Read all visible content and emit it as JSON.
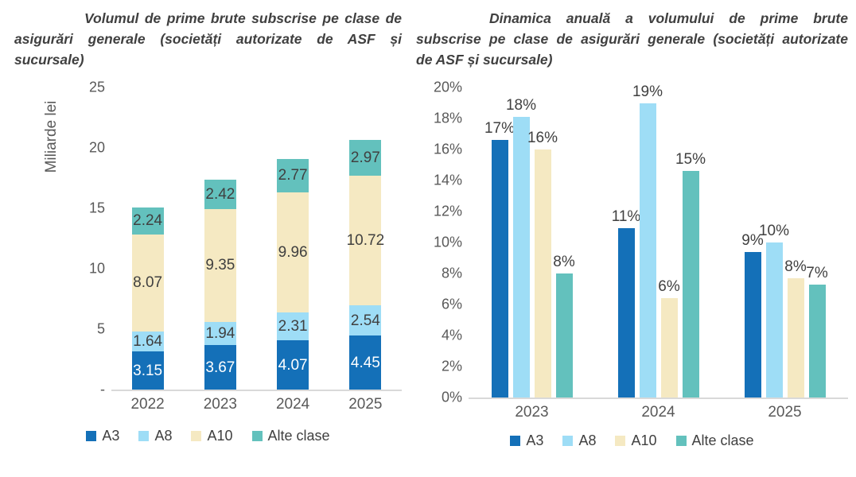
{
  "colors": {
    "axis_line": "#d9d9d9",
    "tick_text": "#595959",
    "label_text": "#404040",
    "series_a3": "#1470b8",
    "series_a8": "#9eddf6",
    "series_a10": "#f5e9c2",
    "series_alte_clase": "#63c1bd"
  },
  "chart_data": [
    {
      "type": "bar",
      "variant": "stacked",
      "title": "Volumul de prime brute subscrise pe clase de asigurări generale (societăți autorizate de ASF și sucursale)",
      "title_lines": [
        "Volumul de prime brute subscrise pe clase de",
        "asigurări generale (societăți autorizate de ASF și",
        "sucursale)"
      ],
      "ylabel": "Miliarde lei",
      "ylim": [
        0,
        25
      ],
      "grid": false,
      "legend_position": "bottom",
      "yticks": [
        {
          "value": 25,
          "label": "25"
        },
        {
          "value": 20,
          "label": "20"
        },
        {
          "value": 15,
          "label": "15"
        },
        {
          "value": 10,
          "label": "10"
        },
        {
          "value": 5,
          "label": "5"
        },
        {
          "value": 0,
          "label": "-"
        }
      ],
      "categories": [
        "2022",
        "2023",
        "2024",
        "2025"
      ],
      "series": [
        {
          "name": "A3",
          "color": "#1470b8",
          "text_color": "#ffffff",
          "values": [
            3.15,
            3.67,
            4.07,
            4.45
          ],
          "labels": [
            "3.15",
            "3.67",
            "4.07",
            "4.45"
          ]
        },
        {
          "name": "A8",
          "color": "#9eddf6",
          "text_color": "#404040",
          "values": [
            1.64,
            1.94,
            2.31,
            2.54
          ],
          "labels": [
            "1.64",
            "1.94",
            "2.31",
            "2.54"
          ]
        },
        {
          "name": "A10",
          "color": "#f5e9c2",
          "text_color": "#404040",
          "values": [
            8.07,
            9.35,
            9.96,
            10.72
          ],
          "labels": [
            "8.07",
            "9.35",
            "9.96",
            "10.72"
          ]
        },
        {
          "name": "Alte clase",
          "color": "#63c1bd",
          "text_color": "#404040",
          "values": [
            2.24,
            2.42,
            2.77,
            2.97
          ],
          "labels": [
            "2.24",
            "2.42",
            "2.77",
            "2.97"
          ]
        }
      ]
    },
    {
      "type": "bar",
      "variant": "grouped",
      "title": "Dinamica anuală a volumului de prime brute subscrise pe clase de asigurări generale (societăți autorizate de ASF și sucursale)",
      "title_lines": [
        "Dinamica anuală a volumului de prime brute",
        "subscrise pe clase de asigurări generale (societăți autorizate",
        "de ASF și sucursale)"
      ],
      "ylabel": "",
      "ylim": [
        0,
        20
      ],
      "grid": false,
      "legend_position": "bottom",
      "yticks": [
        {
          "value": 20,
          "label": "20%"
        },
        {
          "value": 18,
          "label": "18%"
        },
        {
          "value": 16,
          "label": "16%"
        },
        {
          "value": 14,
          "label": "14%"
        },
        {
          "value": 12,
          "label": "12%"
        },
        {
          "value": 10,
          "label": "10%"
        },
        {
          "value": 8,
          "label": "8%"
        },
        {
          "value": 6,
          "label": "6%"
        },
        {
          "value": 4,
          "label": "4%"
        },
        {
          "value": 2,
          "label": "2%"
        },
        {
          "value": 0,
          "label": "0%"
        }
      ],
      "categories": [
        "2023",
        "2024",
        "2025"
      ],
      "series": [
        {
          "name": "A3",
          "color": "#1470b8",
          "values": [
            16.6,
            10.9,
            9.4
          ],
          "labels": [
            "17%",
            "11%",
            "9%"
          ]
        },
        {
          "name": "A8",
          "color": "#9eddf6",
          "values": [
            18.1,
            19.0,
            10.0
          ],
          "labels": [
            "18%",
            "19%",
            "10%"
          ]
        },
        {
          "name": "A10",
          "color": "#f5e9c2",
          "values": [
            16.0,
            6.4,
            7.7
          ],
          "labels": [
            "16%",
            "6%",
            "8%"
          ]
        },
        {
          "name": "Alte clase",
          "color": "#63c1bd",
          "values": [
            8.0,
            14.6,
            7.3
          ],
          "labels": [
            "8%",
            "15%",
            "7%"
          ]
        }
      ]
    }
  ]
}
